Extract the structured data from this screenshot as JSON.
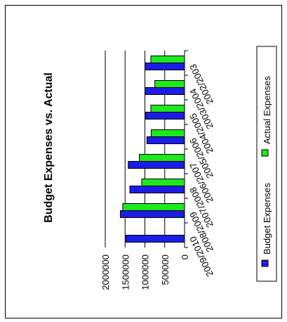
{
  "chart_data": {
    "type": "bar",
    "orientation": "horizontal",
    "title": "Budget Expenses vs. Actual",
    "xlabel": "",
    "ylabel": "",
    "categories": [
      "2002/2003",
      "2003/2004",
      "2004/2005",
      "2005/2006",
      "2006/2007",
      "2007/2008",
      "2008/2009",
      "2009/2010"
    ],
    "series": [
      {
        "name": "Budget Expenses",
        "color": "#1c1ce8",
        "values": [
          1000000,
          1000000,
          980000,
          950000,
          1420000,
          1380000,
          1620000,
          1480000
        ]
      },
      {
        "name": "Actual Expenses",
        "color": "#1ee81e",
        "values": [
          850000,
          750000,
          850000,
          840000,
          1140000,
          1080000,
          1560000,
          0
        ]
      }
    ],
    "value_axis": {
      "min": 0,
      "max": 2000000,
      "ticks": [
        "0",
        "500000",
        "1000000",
        "1500000",
        "2000000"
      ]
    },
    "grid": true,
    "legend_position": "right"
  }
}
